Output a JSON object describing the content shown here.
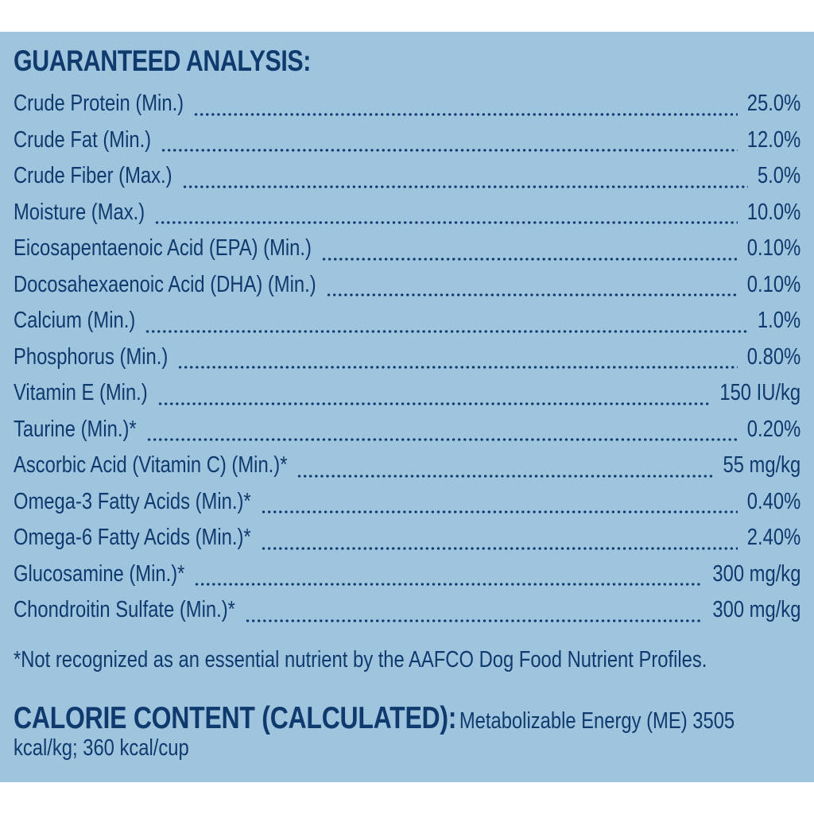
{
  "heading": "GUARANTEED ANALYSIS:",
  "rows": [
    {
      "label": "Crude Protein (Min.)",
      "value": "25.0%"
    },
    {
      "label": "Crude Fat (Min.)",
      "value": "12.0%"
    },
    {
      "label": "Crude Fiber (Max.)",
      "value": "5.0%"
    },
    {
      "label": "Moisture (Max.)",
      "value": "10.0%"
    },
    {
      "label": "Eicosapentaenoic Acid (EPA) (Min.)",
      "value": "0.10%"
    },
    {
      "label": "Docosahexaenoic Acid (DHA) (Min.)",
      "value": "0.10%"
    },
    {
      "label": "Calcium (Min.)",
      "value": "1.0%"
    },
    {
      "label": "Phosphorus (Min.)",
      "value": "0.80%"
    },
    {
      "label": "Vitamin E (Min.)",
      "value": "150 IU/kg"
    },
    {
      "label": "Taurine (Min.)*",
      "value": "0.20%"
    },
    {
      "label": "Ascorbic Acid (Vitamin C) (Min.)*",
      "value": "55 mg/kg"
    },
    {
      "label": "Omega-3 Fatty Acids (Min.)*",
      "value": "0.40%"
    },
    {
      "label": "Omega-6 Fatty Acids (Min.)*",
      "value": "2.40%"
    },
    {
      "label": "Glucosamine (Min.)*",
      "value": "300 mg/kg"
    },
    {
      "label": "Chondroitin Sulfate (Min.)*",
      "value": "300 mg/kg"
    }
  ],
  "footnote": "*Not recognized as an essential nutrient by the AAFCO Dog Food Nutrient Profiles.",
  "calorie": {
    "title": "CALORIE CONTENT (CALCULATED):",
    "text": "Metabolizable Energy (ME) 3505 kcal/kg; 360 kcal/cup"
  },
  "colors": {
    "panel_background": "#9fc4de",
    "text": "#0f3a6e",
    "page_background": "#ffffff"
  }
}
